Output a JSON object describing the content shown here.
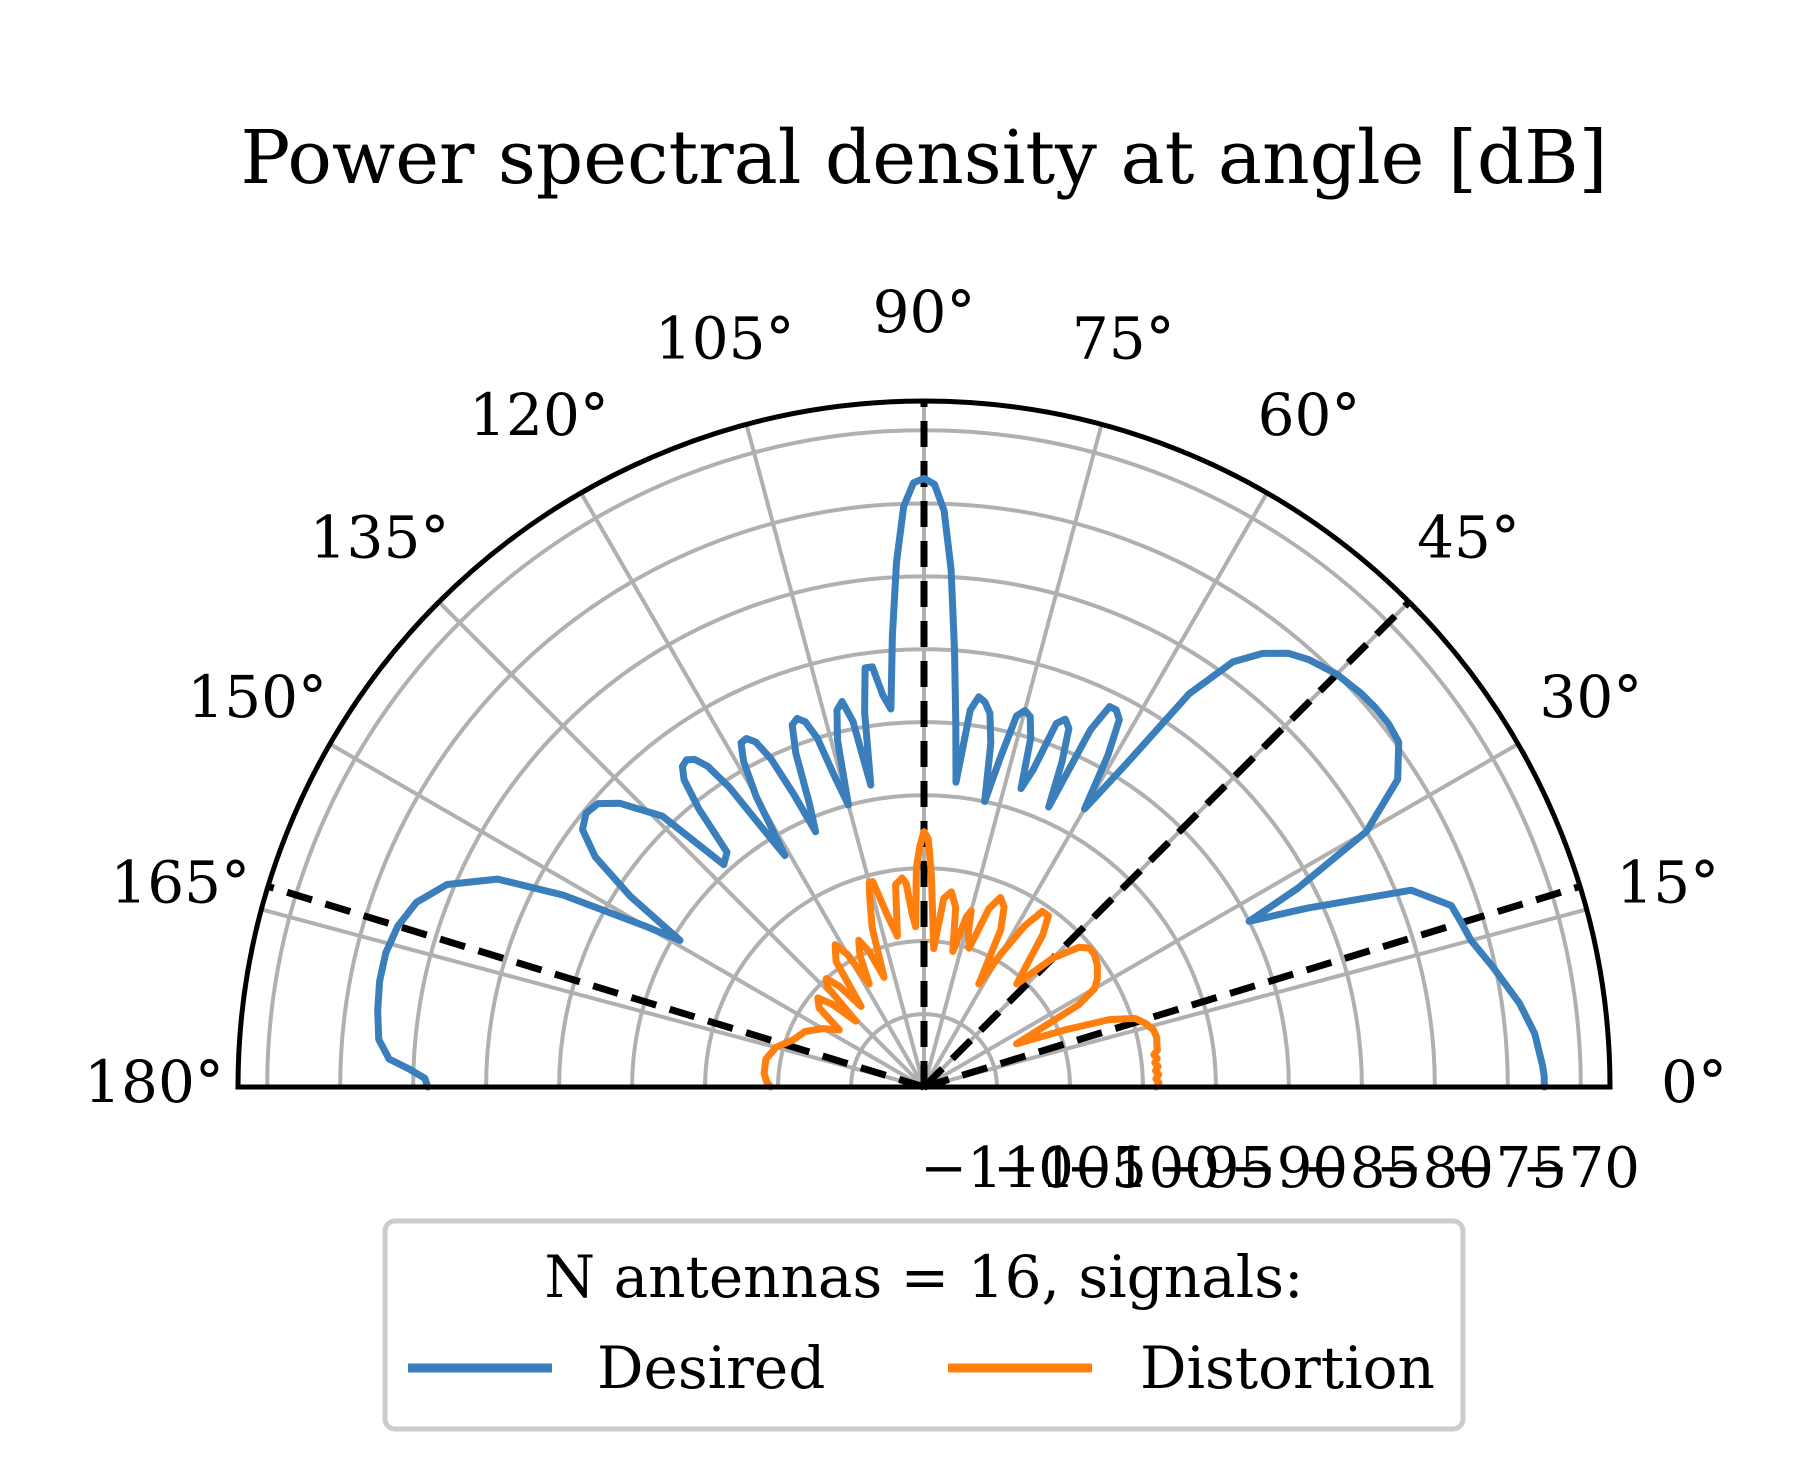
{
  "chart_data": {
    "type": "polar-line",
    "title": "Power spectral density at angle [dB]",
    "theta_range_deg": [
      0,
      180
    ],
    "theta_ticks": [
      "0°",
      "15°",
      "30°",
      "45°",
      "60°",
      "75°",
      "90°",
      "105°",
      "120°",
      "135°",
      "150°",
      "165°",
      "180°"
    ],
    "theta_tick_values": [
      0,
      15,
      30,
      45,
      60,
      75,
      90,
      105,
      120,
      135,
      150,
      165,
      180
    ],
    "r_range": [
      -115,
      -68
    ],
    "r_ticks": [
      "−110",
      "−105",
      "−100",
      "−95",
      "−90",
      "−85",
      "−80",
      "−75",
      "−70"
    ],
    "r_tick_values": [
      -110,
      -105,
      -100,
      -95,
      -90,
      -85,
      -80,
      -75,
      -70
    ],
    "grid": true,
    "signal_directions_deg": [
      17,
      45,
      90,
      163
    ],
    "legend": {
      "title": "N antennas = 16, signals:",
      "placement": "bottom-center",
      "entries": [
        "Desired",
        "Distortion"
      ]
    },
    "series": [
      {
        "name": "Desired",
        "color": "#3a7fbb",
        "theta_deg": [
          0,
          1,
          2,
          5,
          8,
          12,
          15,
          17,
          19,
          22,
          25,
          27,
          28,
          30,
          33,
          36,
          38,
          40,
          42,
          45,
          48,
          50,
          52,
          54,
          56,
          58,
          60,
          61,
          62,
          63,
          64,
          65,
          66,
          67,
          68,
          69,
          70,
          71,
          72,
          73,
          74,
          75,
          76,
          77,
          78,
          79,
          80,
          81,
          82,
          83,
          84,
          85,
          86,
          87,
          88,
          89,
          90,
          91,
          92,
          93,
          94,
          95,
          96,
          97,
          98,
          99,
          100,
          101,
          102,
          103,
          104,
          105,
          106,
          107,
          108,
          109,
          110,
          111,
          112,
          113,
          114,
          115,
          116,
          117,
          118,
          119,
          120,
          121,
          122,
          123,
          124,
          125,
          126,
          127,
          128,
          129,
          130,
          132,
          134,
          137,
          139,
          141,
          143,
          145,
          147,
          149,
          150,
          152,
          154,
          157,
          160,
          163,
          166,
          169,
          172,
          175,
          177,
          178,
          179,
          180
        ],
        "values": [
          -72.5,
          -72.5,
          -72.6,
          -73,
          -73.8,
          -75.2,
          -76.2,
          -76.5,
          -76.8,
          -79,
          -86,
          -90,
          -86,
          -80,
          -76.3,
          -74.8,
          -74.6,
          -74.6,
          -74.7,
          -75,
          -75.6,
          -76.2,
          -77.3,
          -79,
          -82.5,
          -89,
          -93,
          -89,
          -86.5,
          -86,
          -86,
          -88,
          -94,
          -90.8,
          -88.5,
          -88,
          -88.5,
          -92,
          -93.5,
          -90,
          -88.6,
          -88.3,
          -88.8,
          -92,
          -95,
          -91,
          -89,
          -88.3,
          -88,
          -89,
          -94,
          -90,
          -85,
          -79.5,
          -75.5,
          -73.7,
          -73.3,
          -73.6,
          -75.2,
          -79,
          -84,
          -89,
          -88,
          -86,
          -86,
          -89,
          -94,
          -89.5,
          -88,
          -88.5,
          -90.5,
          -95,
          -93,
          -90,
          -88.7,
          -88.3,
          -88.6,
          -90.5,
          -94,
          -96,
          -93,
          -90.2,
          -88.7,
          -88.2,
          -88.3,
          -89.5,
          -92,
          -96.5,
          -94,
          -90.5,
          -88.5,
          -87.6,
          -87.3,
          -87.5,
          -88.3,
          -90.5,
          -94,
          -94.5,
          -89.2,
          -86.5,
          -85.4,
          -85.2,
          -85.7,
          -87.5,
          -91,
          -95.5,
          -93,
          -87,
          -82.5,
          -79.5,
          -78,
          -77.3,
          -77,
          -77,
          -77.2,
          -77.5,
          -78.3,
          -79.7,
          -80.8,
          -81,
          -81
        ]
      },
      {
        "name": "Distortion",
        "color": "#ff7f0e",
        "theta_deg": [
          0,
          1,
          2,
          3,
          4,
          5,
          6,
          7,
          8,
          9,
          10,
          12,
          14,
          16,
          18,
          20,
          22,
          25,
          28,
          30,
          32,
          35,
          38,
          40,
          42,
          45,
          48,
          50,
          52,
          54,
          56,
          58,
          60,
          62,
          64,
          66,
          68,
          70,
          72,
          74,
          75,
          76,
          78,
          80,
          82,
          84,
          86,
          88,
          89,
          90,
          91,
          92,
          93,
          94,
          95,
          96,
          98,
          100,
          102,
          104,
          105,
          106,
          108,
          110,
          112,
          114,
          116,
          118,
          120,
          122,
          125,
          128,
          130,
          132,
          134,
          136,
          138,
          140,
          143,
          146,
          150,
          155,
          160,
          165,
          170,
          175,
          178,
          180
        ],
        "values": [
          -99.1,
          -98.9,
          -99.1,
          -98.9,
          -99.1,
          -98.9,
          -99.1,
          -98.9,
          -99.1,
          -98.8,
          -98.8,
          -98.7,
          -98.8,
          -99.2,
          -99.8,
          -101.5,
          -104.5,
          -108,
          -103,
          -101.5,
          -101,
          -100.5,
          -100.2,
          -100.2,
          -100.7,
          -102.5,
          -105.5,
          -104,
          -101.8,
          -100.5,
          -100.5,
          -102,
          -104.5,
          -107,
          -103,
          -101.5,
          -101,
          -102,
          -105,
          -104,
          -102.5,
          -103,
          -105.5,
          -102.5,
          -101.5,
          -102,
          -105.5,
          -100.5,
          -98,
          -97.5,
          -98.5,
          -100,
          -104,
          -103,
          -101,
          -100.6,
          -101,
          -104.5,
          -103,
          -100.5,
          -100.5,
          -101.5,
          -103.5,
          -107,
          -105,
          -104,
          -105,
          -107,
          -104.5,
          -103.5,
          -104.5,
          -108,
          -106,
          -105,
          -105.5,
          -108.5,
          -106.5,
          -105.5,
          -106,
          -108,
          -107,
          -106,
          -105.5,
          -104.5,
          -104,
          -104,
          -104.2,
          -104.5
        ]
      }
    ]
  }
}
